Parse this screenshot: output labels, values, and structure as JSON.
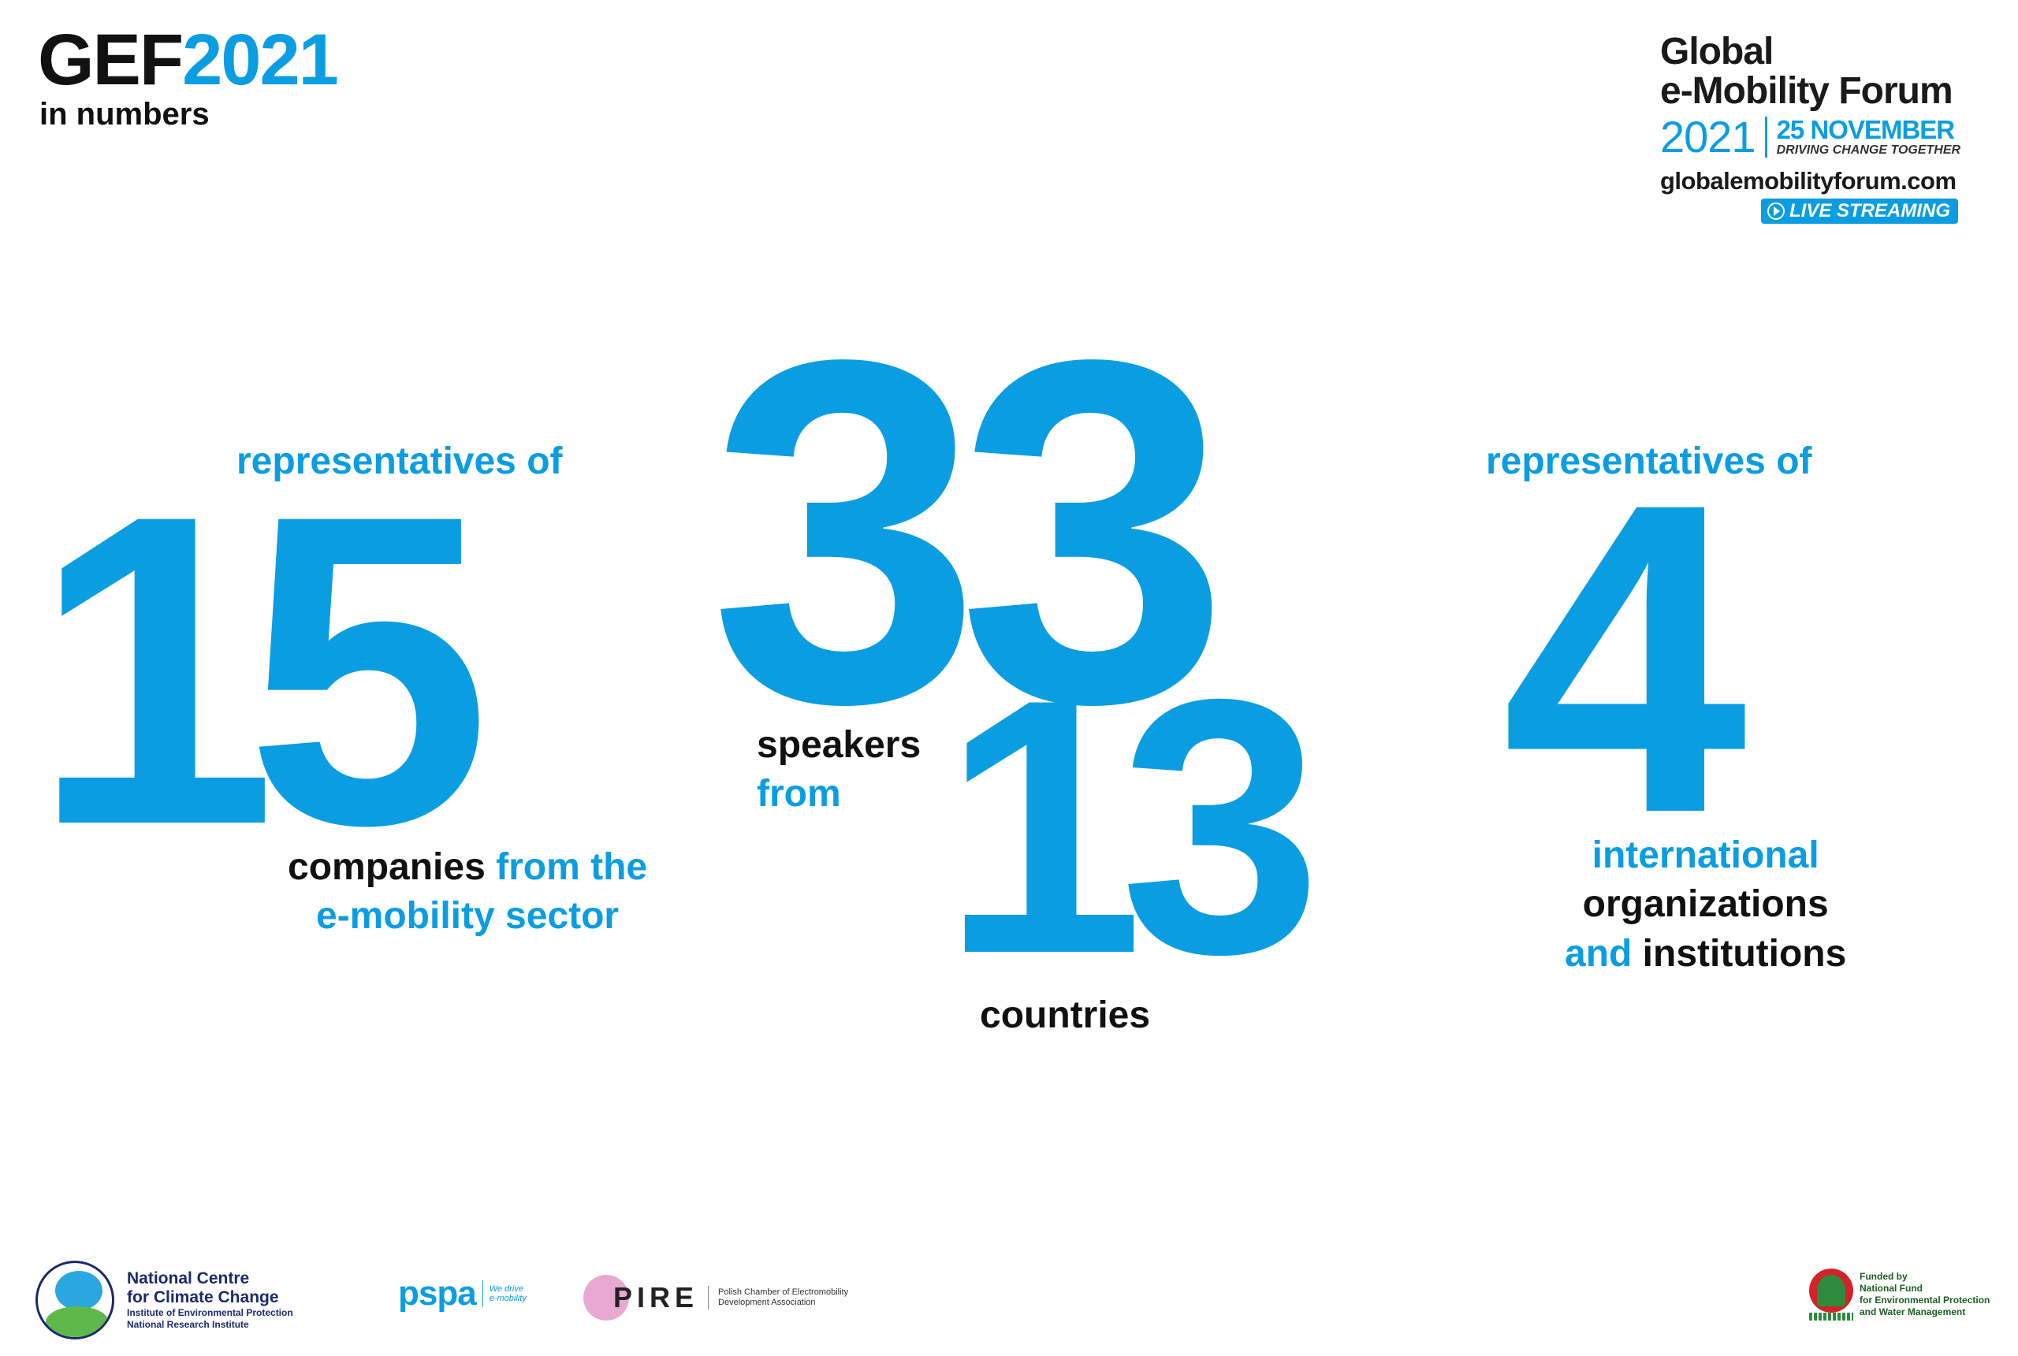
{
  "header": {
    "title_main": "GEF",
    "title_year": "2021",
    "subtitle": "in numbers"
  },
  "forum": {
    "line1": "Global",
    "line2": "e-Mobility Forum",
    "year": "2021",
    "date": "25 NOVEMBER",
    "tagline": "DRIVING CHANGE TOGETHER",
    "url": "globalemobilityforum.com",
    "live": "LIVE STREAMING"
  },
  "stats": {
    "companies": {
      "pre": "representatives of",
      "number": "15",
      "line1_black": "companies",
      "line1_blue": " from the",
      "line2_blue": "e-mobility sector"
    },
    "speakers": {
      "number": "33",
      "line1_black": "speakers",
      "line2_blue": "from"
    },
    "countries": {
      "number": "13",
      "label": "countries"
    },
    "organizations": {
      "pre": "representatives of",
      "number": "4",
      "line1_blue": "international",
      "line2_black": "organizations",
      "line3_blue": "and",
      "line3_black": " institutions"
    }
  },
  "footer": {
    "ncc": {
      "line1": "National Centre",
      "line2": "for Climate Change",
      "line3": "Institute of Environmental Protection",
      "line4": "National Research Institute"
    },
    "pspa": {
      "word": "pspa",
      "tag1": "We drive",
      "tag2": "e-mobility"
    },
    "pire": {
      "word": "PIRE",
      "tag1": "Polish Chamber of Electromobility",
      "tag2": "Development Association"
    },
    "fund": {
      "line1": "Funded by",
      "line2": "National Fund",
      "line3": "for Environmental Protection",
      "line4": "and Water Management"
    }
  },
  "colors": {
    "accent": "#0a9de2",
    "text": "#111111"
  }
}
